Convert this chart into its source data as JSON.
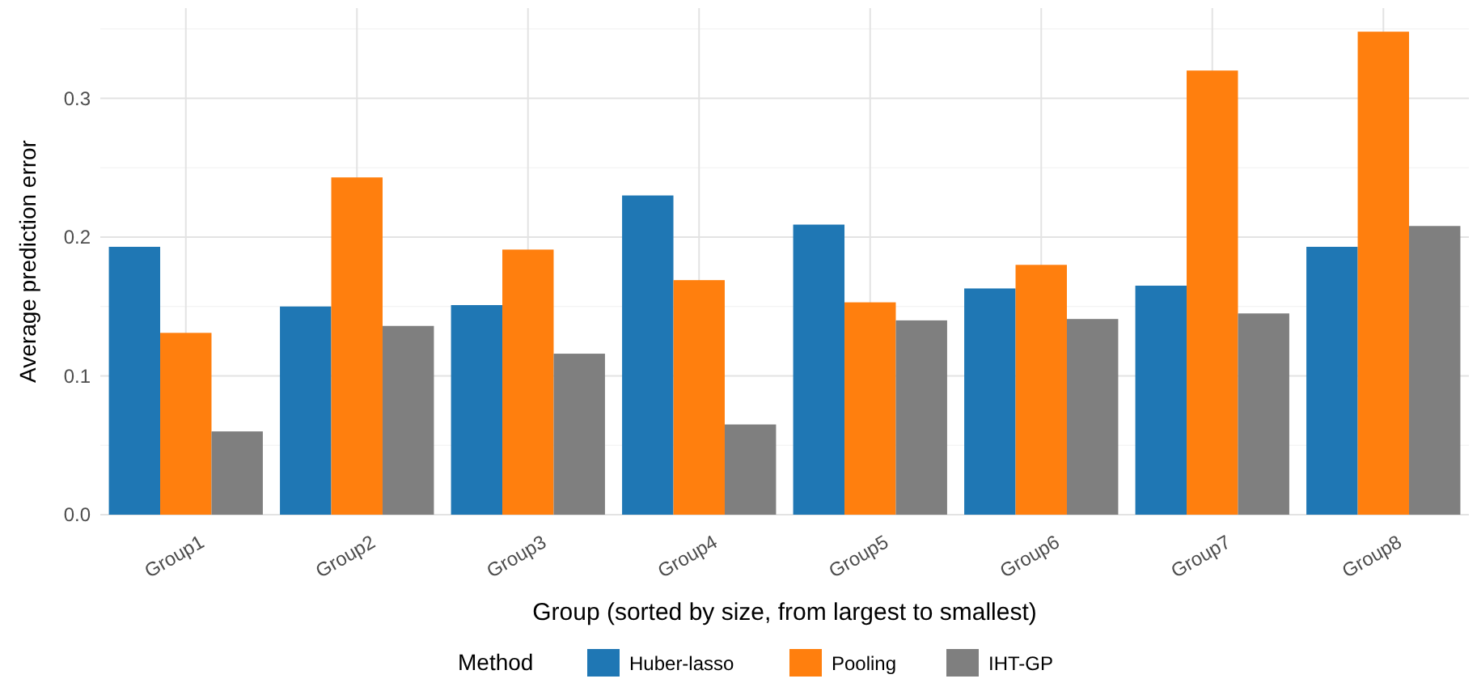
{
  "chart_data": {
    "type": "bar",
    "xlabel": "Group (sorted by size, from largest to smallest)",
    "ylabel": "Average prediction error",
    "legend_title": "Method",
    "legend": "bottom",
    "grid": true,
    "categories": [
      "Group1",
      "Group2",
      "Group3",
      "Group4",
      "Group5",
      "Group6",
      "Group7",
      "Group8"
    ],
    "ylim": [
      0,
      0.365
    ],
    "yticks": [
      {
        "value": 0,
        "label": "0.0"
      },
      {
        "value": 0.1,
        "label": "0.1"
      },
      {
        "value": 0.2,
        "label": "0.2"
      },
      {
        "value": 0.3,
        "label": "0.3"
      }
    ],
    "series": [
      {
        "name": "Huber-lasso",
        "color": "#1f77b4",
        "values": [
          0.193,
          0.15,
          0.151,
          0.23,
          0.209,
          0.163,
          0.165,
          0.193
        ]
      },
      {
        "name": "Pooling",
        "color": "#ff7f0e",
        "values": [
          0.131,
          0.243,
          0.191,
          0.169,
          0.153,
          0.18,
          0.32,
          0.348
        ]
      },
      {
        "name": "IHT-GP",
        "color": "#7f7f7f",
        "values": [
          0.06,
          0.136,
          0.116,
          0.065,
          0.14,
          0.141,
          0.145,
          0.208
        ]
      }
    ]
  }
}
